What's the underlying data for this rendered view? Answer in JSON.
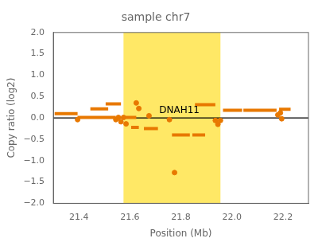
{
  "chart_data": {
    "type": "scatter",
    "title": "sample chr7",
    "xlabel": "Position (Mb)",
    "ylabel": "Copy ratio (log2)",
    "xlim": [
      21.3,
      22.3
    ],
    "ylim": [
      -2.0,
      2.0
    ],
    "xticks": [
      21.4,
      21.6,
      21.8,
      {
        "value": 22.0,
        "label": "22.0"
      },
      22.2
    ],
    "yticks": [
      {
        "value": -2.0,
        "label": "−2.0"
      },
      {
        "value": -1.5,
        "label": "−1.5"
      },
      {
        "value": -1.0,
        "label": "−1.0"
      },
      {
        "value": -0.5,
        "label": "−0.5"
      },
      {
        "value": 0.0,
        "label": "0.0"
      },
      0.5,
      {
        "value": 1.0,
        "label": "1.0"
      },
      1.5,
      {
        "value": 2.0,
        "label": "2.0"
      }
    ],
    "grid": false,
    "color": "#E87800",
    "highlight": {
      "start": 21.575,
      "end": 21.955,
      "color": "#FFE866"
    },
    "hline": {
      "y": 0.0,
      "color": "black"
    },
    "annotations": [
      {
        "text": "DNAH11",
        "x": 21.715,
        "y": 0.06
      }
    ],
    "segments": [
      {
        "x1": 21.305,
        "x2": 21.395,
        "y": 0.1
      },
      {
        "x1": 21.395,
        "x2": 21.545,
        "y": 0.01
      },
      {
        "x1": 21.445,
        "x2": 21.515,
        "y": 0.21
      },
      {
        "x1": 21.505,
        "x2": 21.565,
        "y": 0.33
      },
      {
        "x1": 21.575,
        "x2": 21.625,
        "y": 0.01
      },
      {
        "x1": 21.605,
        "x2": 21.635,
        "y": -0.22
      },
      {
        "x1": 21.655,
        "x2": 21.71,
        "y": -0.25
      },
      {
        "x1": 21.765,
        "x2": 21.835,
        "y": -0.4
      },
      {
        "x1": 21.845,
        "x2": 21.895,
        "y": -0.4
      },
      {
        "x1": 21.855,
        "x2": 21.935,
        "y": 0.31
      },
      {
        "x1": 21.965,
        "x2": 22.04,
        "y": 0.18
      },
      {
        "x1": 22.045,
        "x2": 22.175,
        "y": 0.18
      },
      {
        "x1": 22.185,
        "x2": 22.23,
        "y": 0.2
      }
    ],
    "points": [
      {
        "x": 21.395,
        "y": -0.04
      },
      {
        "x": 21.545,
        "y": -0.04
      },
      {
        "x": 21.555,
        "y": 0.01
      },
      {
        "x": 21.565,
        "y": -0.09
      },
      {
        "x": 21.575,
        "y": 0.01
      },
      {
        "x": 21.585,
        "y": -0.14
      },
      {
        "x": 21.625,
        "y": 0.35
      },
      {
        "x": 21.635,
        "y": 0.22
      },
      {
        "x": 21.675,
        "y": 0.05
      },
      {
        "x": 21.755,
        "y": -0.04
      },
      {
        "x": 21.775,
        "y": -1.28
      },
      {
        "x": 21.935,
        "y": -0.06
      },
      {
        "x": 21.945,
        "y": -0.15
      },
      {
        "x": 21.955,
        "y": -0.06
      },
      {
        "x": 22.18,
        "y": 0.07
      },
      {
        "x": 22.19,
        "y": 0.12
      },
      {
        "x": 22.195,
        "y": -0.02
      }
    ]
  }
}
